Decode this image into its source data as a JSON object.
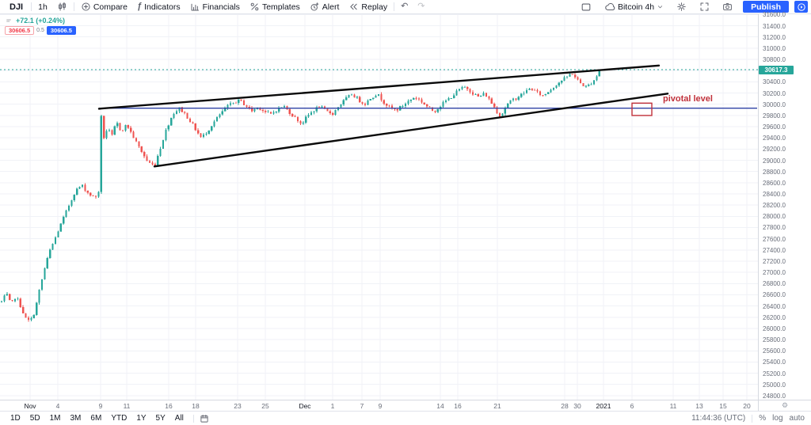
{
  "toolbar": {
    "symbol": "DJI",
    "interval": "1h",
    "compare_label": "Compare",
    "indicators_label": "Indicators",
    "indicators_glyph": "ƒ",
    "financials_label": "Financials",
    "templates_label": "Templates",
    "alert_label": "Alert",
    "replay_label": "Replay",
    "undo_glyph": "↶",
    "redo_glyph": "↷",
    "watchlist_label": "Bitcoin 4h",
    "publish_label": "Publish"
  },
  "legend": {
    "change_text": "+72.1 (+0.24%)",
    "sell_price": "30606.5",
    "spread": "0.5",
    "buy_price": "30606.5"
  },
  "bottom": {
    "ranges": [
      "1D",
      "5D",
      "1M",
      "3M",
      "6M",
      "YTD",
      "1Y",
      "5Y",
      "All"
    ],
    "clock": "11:44:36 (UTC)",
    "percent_label": "%",
    "log_label": "log",
    "auto_label": "auto",
    "corner_gear": "⚙"
  },
  "chart_data": {
    "type": "candlestick",
    "title": "DJI 1h",
    "last_price": 30617.3,
    "last_price_label": "30617.3",
    "ylim": [
      24728,
      31606
    ],
    "y_tick_step": 200,
    "y_ticks": [
      31600,
      31400,
      31200,
      31000,
      30800,
      30600,
      30400,
      30200,
      30000,
      29800,
      29600,
      29400,
      29200,
      29000,
      28800,
      28600,
      28400,
      28200,
      28000,
      27800,
      27600,
      27400,
      27200,
      27000,
      26800,
      26600,
      26400,
      26200,
      26000,
      25800,
      25600,
      25400,
      25200,
      25000,
      24800
    ],
    "x_ticks": [
      {
        "label": "Nov",
        "x": 38,
        "major": true
      },
      {
        "label": "4",
        "x": 73,
        "major": false
      },
      {
        "label": "9",
        "x": 127,
        "major": false
      },
      {
        "label": "11",
        "x": 160,
        "major": false
      },
      {
        "label": "16",
        "x": 213,
        "major": false
      },
      {
        "label": "18",
        "x": 247,
        "major": false
      },
      {
        "label": "23",
        "x": 300,
        "major": false
      },
      {
        "label": "25",
        "x": 335,
        "major": false
      },
      {
        "label": "Dec",
        "x": 385,
        "major": true
      },
      {
        "label": "1",
        "x": 420,
        "major": false
      },
      {
        "label": "7",
        "x": 457,
        "major": false
      },
      {
        "label": "9",
        "x": 480,
        "major": false
      },
      {
        "label": "14",
        "x": 556,
        "major": false
      },
      {
        "label": "16",
        "x": 578,
        "major": false
      },
      {
        "label": "21",
        "x": 628,
        "major": false
      },
      {
        "label": "28",
        "x": 713,
        "major": false
      },
      {
        "label": "30",
        "x": 729,
        "major": false
      },
      {
        "label": "2021",
        "x": 762,
        "major": true
      },
      {
        "label": "6",
        "x": 798,
        "major": false
      },
      {
        "label": "11",
        "x": 850,
        "major": false
      },
      {
        "label": "13",
        "x": 883,
        "major": false
      },
      {
        "label": "15",
        "x": 913,
        "major": false
      },
      {
        "label": "20",
        "x": 943,
        "major": false
      }
    ],
    "candles": {
      "x_start": 2,
      "x_end": 758,
      "step": 3.4,
      "noise": 55,
      "wick": 35,
      "seed": 7,
      "price_anchors": [
        [
          2,
          26480
        ],
        [
          8,
          26620
        ],
        [
          14,
          26420
        ],
        [
          20,
          26580
        ],
        [
          26,
          26400
        ],
        [
          32,
          26180
        ],
        [
          38,
          26120
        ],
        [
          44,
          26300
        ],
        [
          50,
          26700
        ],
        [
          56,
          27050
        ],
        [
          62,
          27350
        ],
        [
          70,
          27620
        ],
        [
          78,
          27900
        ],
        [
          86,
          28160
        ],
        [
          95,
          28450
        ],
        [
          103,
          28560
        ],
        [
          112,
          28400
        ],
        [
          120,
          28330
        ],
        [
          125,
          28460
        ],
        [
          127,
          29860
        ],
        [
          131,
          29400
        ],
        [
          136,
          29580
        ],
        [
          141,
          29420
        ],
        [
          147,
          29680
        ],
        [
          153,
          29520
        ],
        [
          160,
          29640
        ],
        [
          166,
          29480
        ],
        [
          172,
          29320
        ],
        [
          179,
          29150
        ],
        [
          186,
          28980
        ],
        [
          195,
          28900
        ],
        [
          202,
          29200
        ],
        [
          210,
          29560
        ],
        [
          218,
          29820
        ],
        [
          226,
          29930
        ],
        [
          233,
          29840
        ],
        [
          240,
          29700
        ],
        [
          247,
          29550
        ],
        [
          254,
          29400
        ],
        [
          262,
          29520
        ],
        [
          270,
          29680
        ],
        [
          278,
          29820
        ],
        [
          287,
          29960
        ],
        [
          295,
          30030
        ],
        [
          303,
          30070
        ],
        [
          310,
          29980
        ],
        [
          318,
          29880
        ],
        [
          326,
          29950
        ],
        [
          334,
          29870
        ],
        [
          342,
          29820
        ],
        [
          350,
          29910
        ],
        [
          358,
          29970
        ],
        [
          366,
          29850
        ],
        [
          374,
          29740
        ],
        [
          381,
          29650
        ],
        [
          388,
          29790
        ],
        [
          396,
          29890
        ],
        [
          404,
          29960
        ],
        [
          412,
          29870
        ],
        [
          420,
          29830
        ],
        [
          428,
          29970
        ],
        [
          436,
          30090
        ],
        [
          444,
          30180
        ],
        [
          452,
          30090
        ],
        [
          460,
          30000
        ],
        [
          468,
          30110
        ],
        [
          476,
          30190
        ],
        [
          484,
          30050
        ],
        [
          492,
          29940
        ],
        [
          500,
          29890
        ],
        [
          508,
          29970
        ],
        [
          516,
          30060
        ],
        [
          524,
          30130
        ],
        [
          532,
          30050
        ],
        [
          540,
          29950
        ],
        [
          548,
          29870
        ],
        [
          556,
          29970
        ],
        [
          564,
          30070
        ],
        [
          572,
          30160
        ],
        [
          580,
          30260
        ],
        [
          588,
          30310
        ],
        [
          596,
          30210
        ],
        [
          604,
          30130
        ],
        [
          612,
          30190
        ],
        [
          620,
          30040
        ],
        [
          628,
          29860
        ],
        [
          632,
          29770
        ],
        [
          638,
          29950
        ],
        [
          646,
          30070
        ],
        [
          654,
          30130
        ],
        [
          662,
          30210
        ],
        [
          670,
          30290
        ],
        [
          678,
          30210
        ],
        [
          686,
          30150
        ],
        [
          694,
          30250
        ],
        [
          702,
          30350
        ],
        [
          710,
          30430
        ],
        [
          716,
          30490
        ],
        [
          722,
          30560
        ],
        [
          728,
          30450
        ],
        [
          734,
          30360
        ],
        [
          740,
          30310
        ],
        [
          746,
          30370
        ],
        [
          752,
          30470
        ],
        [
          758,
          30617.3
        ]
      ]
    },
    "overlays": {
      "upper_trendline": {
        "x1": 125,
        "p1": 29920,
        "x2": 832,
        "p2": 30690
      },
      "lower_trendline": {
        "x1": 195,
        "p1": 28890,
        "x2": 843,
        "p2": 30190
      },
      "horizontal_line": {
        "x1": 125,
        "x2": 956,
        "price": 29930
      },
      "last_price_line": {
        "price": 30617.3
      },
      "pivot_box": {
        "x1": 798,
        "x2": 823,
        "p_top": 30020,
        "p_bottom": 29800
      },
      "pivot_label": {
        "text": "pivotal level",
        "x": 837,
        "price": 30100
      }
    },
    "colors": {
      "up": "#26a69a",
      "down": "#ef5350",
      "grid": "#f0f2f7",
      "trendline": "#0a0a0a",
      "hline_blue": "#2e41a5",
      "annotation_red": "#c0303a",
      "last_line": "#26a69a",
      "accent": "#2962ff"
    }
  }
}
